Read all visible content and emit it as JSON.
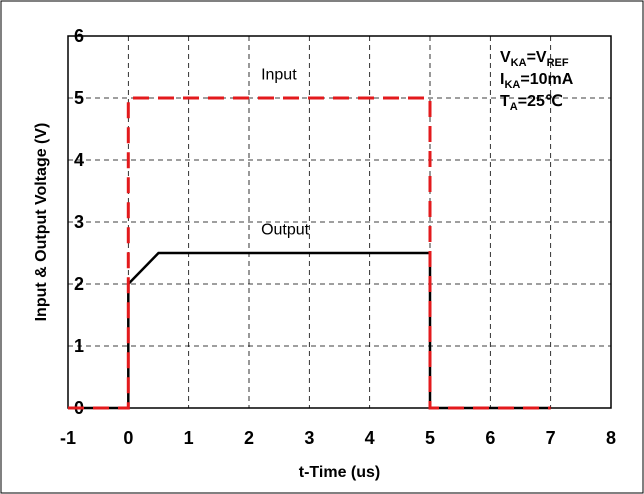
{
  "chart_data": {
    "type": "line",
    "title": "",
    "xlabel": "t-Time (us)",
    "ylabel": "Input & Output Voltage (V)",
    "xlim": [
      -1,
      8
    ],
    "ylim": [
      0,
      6
    ],
    "xticks": [
      -1,
      0,
      1,
      2,
      3,
      4,
      5,
      6,
      7,
      8
    ],
    "yticks": [
      0,
      1,
      2,
      3,
      4,
      5,
      6
    ],
    "grid": true,
    "series": [
      {
        "name": "Input",
        "color": "#e31a1c",
        "style": "dashed",
        "points": [
          [
            -1,
            0
          ],
          [
            0,
            0
          ],
          [
            0,
            5
          ],
          [
            5,
            5
          ],
          [
            5,
            0
          ],
          [
            7,
            0
          ]
        ],
        "label_at": [
          2.2,
          5.3
        ]
      },
      {
        "name": "Output",
        "color": "#000000",
        "style": "solid",
        "points": [
          [
            -1,
            0
          ],
          [
            0,
            0
          ],
          [
            0,
            2
          ],
          [
            0.5,
            2.5
          ],
          [
            5,
            2.5
          ],
          [
            5,
            0
          ],
          [
            7,
            0
          ]
        ],
        "label_at": [
          2.2,
          2.8
        ]
      }
    ],
    "annotations": {
      "line1": {
        "main": "V",
        "sub1": "KA",
        "mid": "=V",
        "sub2": "REF"
      },
      "line2": {
        "main": "I",
        "sub1": "KA",
        "rest": "=10mA"
      },
      "line3": {
        "main": "T",
        "sub1": "A",
        "rest": "=25℃"
      }
    }
  }
}
